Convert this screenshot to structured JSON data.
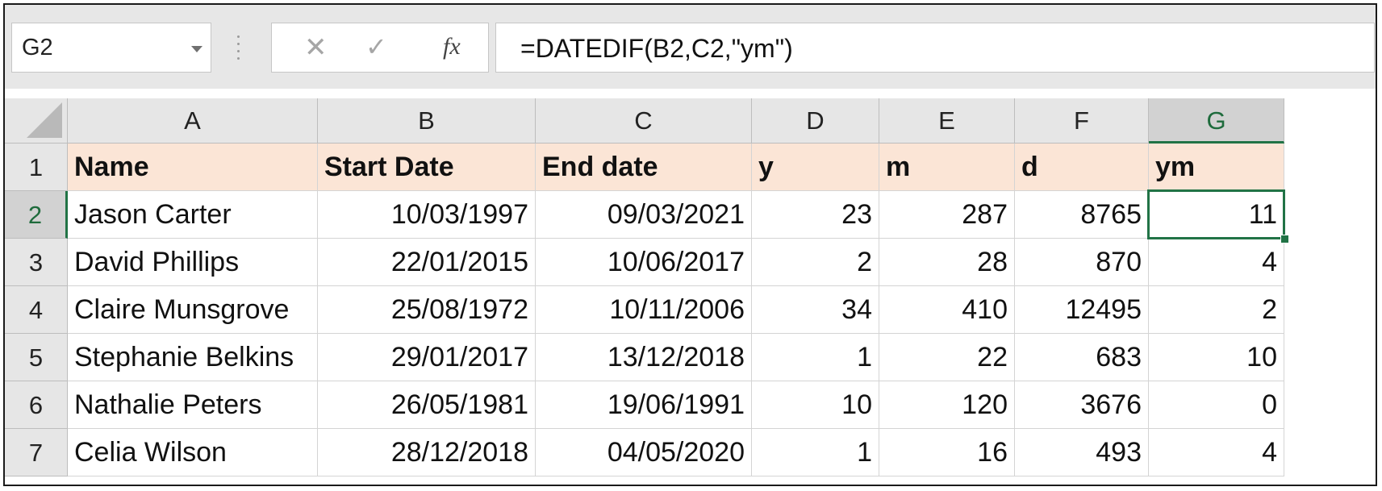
{
  "namebox": {
    "value": "G2"
  },
  "formula_bar": {
    "cancel_icon": "cancel-icon",
    "enter_icon": "enter-icon",
    "fx_label": "fx",
    "formula": "=DATEDIF(B2,C2,\"ym\")"
  },
  "columns": [
    "A",
    "B",
    "C",
    "D",
    "E",
    "F",
    "G"
  ],
  "rows": [
    "1",
    "2",
    "3",
    "4",
    "5",
    "6",
    "7"
  ],
  "header_row": [
    "Name",
    "Start Date",
    "End date",
    "y",
    "m",
    "d",
    "ym"
  ],
  "data": [
    [
      "Jason Carter",
      "10/03/1997",
      "09/03/2021",
      "23",
      "287",
      "8765",
      "11"
    ],
    [
      "David Phillips",
      "22/01/2015",
      "10/06/2017",
      "2",
      "28",
      "870",
      "4"
    ],
    [
      "Claire Munsgrove",
      "25/08/1972",
      "10/11/2006",
      "34",
      "410",
      "12495",
      "2"
    ],
    [
      "Stephanie Belkins",
      "29/01/2017",
      "13/12/2018",
      "1",
      "22",
      "683",
      "10"
    ],
    [
      "Nathalie Peters",
      "26/05/1981",
      "19/06/1991",
      "10",
      "120",
      "3676",
      "0"
    ],
    [
      "Celia Wilson",
      "28/12/2018",
      "04/05/2020",
      "1",
      "16",
      "493",
      "4"
    ]
  ],
  "selection": {
    "cell": "G2",
    "column": "G",
    "row": "2"
  },
  "colors": {
    "header_fill": "#fbe5d6",
    "selection_accent": "#217346",
    "toolbar_bg": "#e7e7e7"
  }
}
